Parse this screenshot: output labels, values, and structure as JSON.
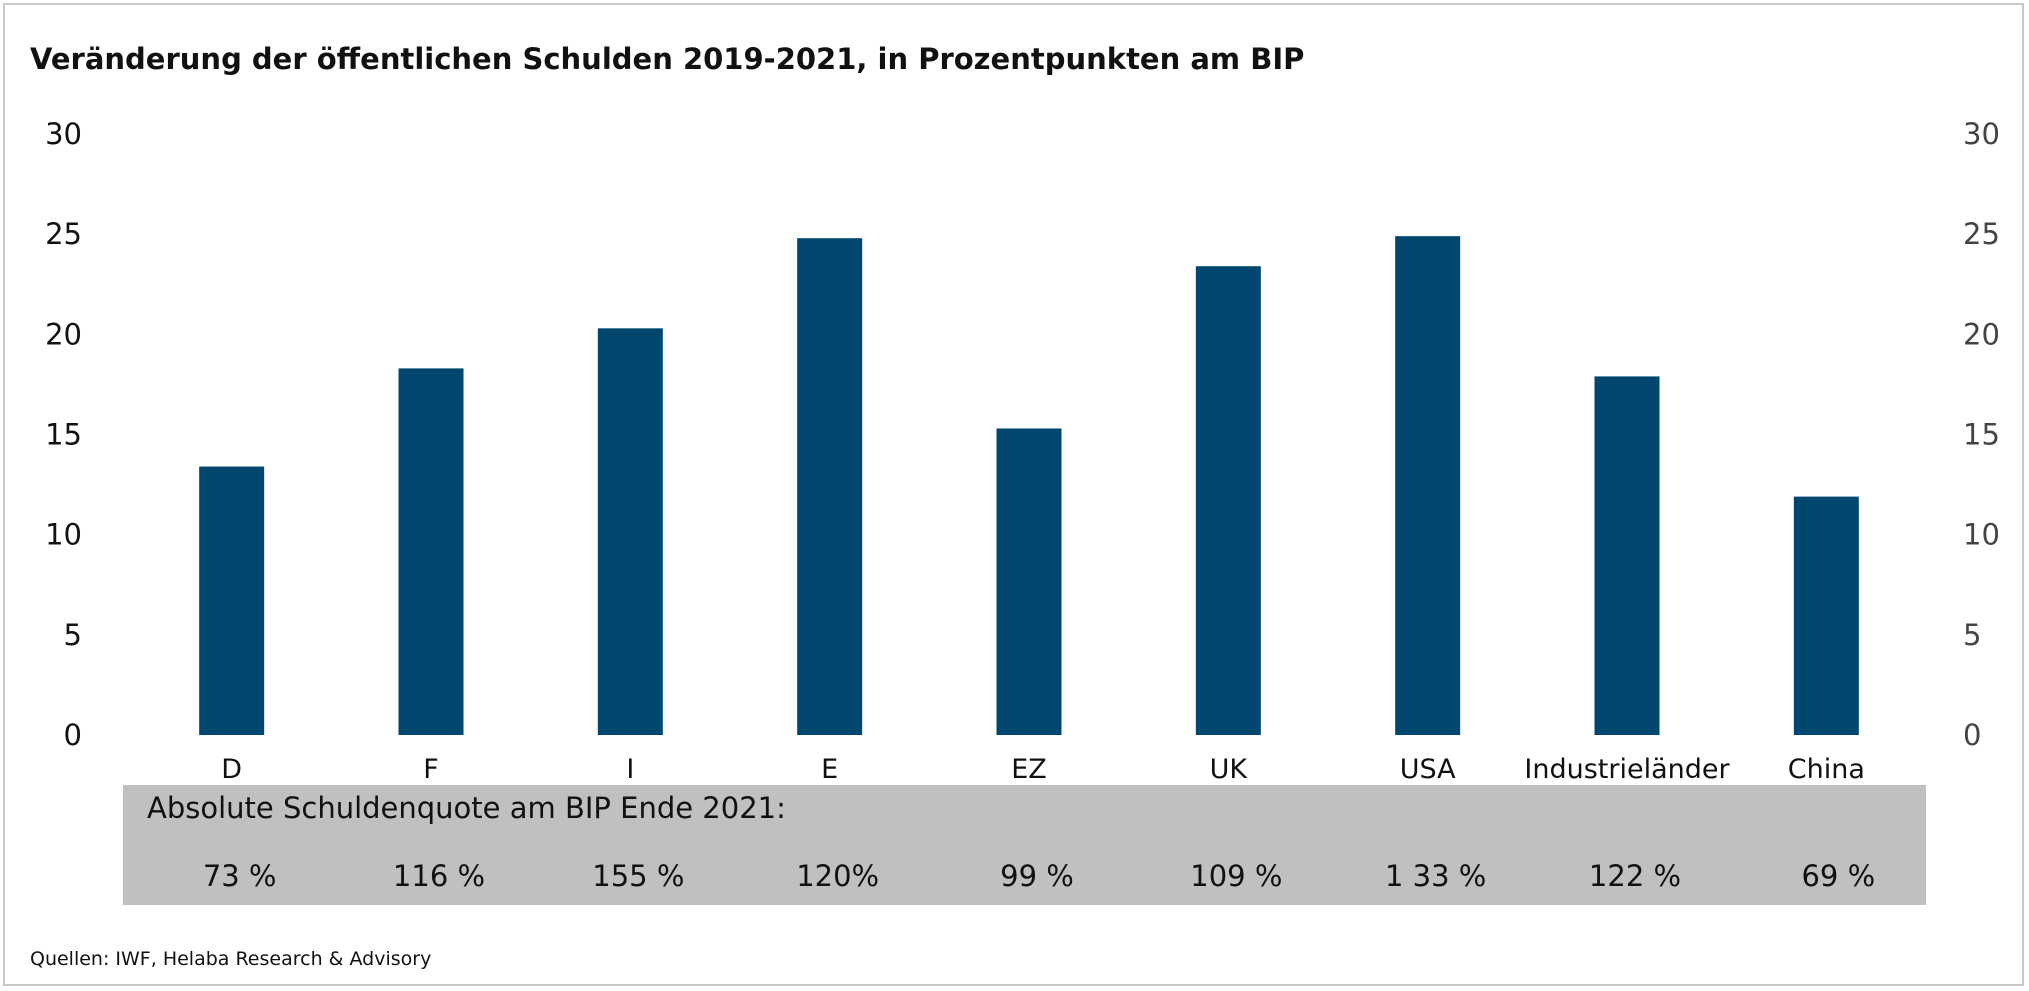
{
  "chart_data": {
    "type": "bar",
    "title": "Veränderung der öffentlichen Schulden 2019-2021, in Prozentpunkten am BIP",
    "categories": [
      "D",
      "F",
      "I",
      "E",
      "EZ",
      "UK",
      "USA",
      "Industrieländer",
      "China"
    ],
    "values": [
      13.4,
      18.3,
      20.3,
      24.8,
      15.3,
      23.4,
      24.9,
      17.9,
      11.9
    ],
    "ylim": [
      0,
      30
    ],
    "yticks": [
      0,
      5,
      10,
      15,
      20,
      25,
      30
    ],
    "ytick_labels": [
      "0",
      "5",
      "10",
      "15",
      "20",
      "25",
      "30"
    ],
    "secondary_axis": true,
    "grid": false,
    "bar_color": "#00466f",
    "xlabel": "",
    "ylabel": ""
  },
  "table": {
    "label": "Absolute Schuldenquote am BIP Ende 2021:",
    "values": [
      "73 %",
      "116 %",
      "155 %",
      "120%",
      "99 %",
      "109 %",
      "1 33 %",
      "122 %",
      "69 %"
    ]
  },
  "source": "Quellen: IWF, Helaba Research & Advisory",
  "colors": {
    "bar": "#00466f",
    "band": "#c0c0c0"
  }
}
